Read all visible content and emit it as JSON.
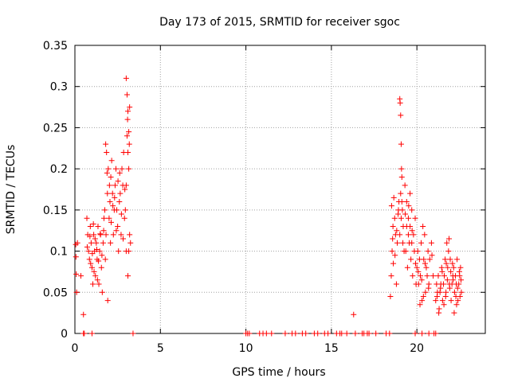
{
  "chart_data": {
    "type": "scatter",
    "title": "Day 173 of 2015, SRMTID for receiver sgoc",
    "xlabel": "GPS time / hours",
    "ylabel": "SRMTID / TECUs",
    "xlim": [
      0,
      24
    ],
    "ylim": [
      0,
      0.35
    ],
    "xticks": [
      0,
      5,
      10,
      15,
      20
    ],
    "xtick_labels": [
      "0",
      "5",
      "10",
      "15",
      "20"
    ],
    "yticks": [
      0,
      0.05,
      0.1,
      0.15,
      0.2,
      0.25,
      0.3,
      0.35
    ],
    "ytick_labels": [
      "0",
      "0.05",
      "0.1",
      "0.15",
      "0.2",
      "0.25",
      "0.3",
      "0.35"
    ],
    "grid": true,
    "marker": "plus",
    "color": "#ff0000",
    "series": [
      {
        "name": "SRMTID",
        "points": [
          [
            0.05,
            0.108
          ],
          [
            0.06,
            0.093
          ],
          [
            0.08,
            0.072
          ],
          [
            0.1,
            0.05
          ],
          [
            0.5,
            0.023
          ],
          [
            0.15,
            0.11
          ],
          [
            0.35,
            0.07
          ],
          [
            0.7,
            0.14
          ],
          [
            0.75,
            0.12
          ],
          [
            0.8,
            0.1
          ],
          [
            0.85,
            0.09
          ],
          [
            0.9,
            0.13
          ],
          [
            0.95,
            0.11
          ],
          [
            1.0,
            0.08
          ],
          [
            1.05,
            0.06
          ],
          [
            1.1,
            0.12
          ],
          [
            1.15,
            0.1
          ],
          [
            1.2,
            0.07
          ],
          [
            1.25,
            0.11
          ],
          [
            1.3,
            0.09
          ],
          [
            1.35,
            0.13
          ],
          [
            1.4,
            0.06
          ],
          [
            1.45,
            0.1
          ],
          [
            1.5,
            0.12
          ],
          [
            1.55,
            0.08
          ],
          [
            1.6,
            0.05
          ],
          [
            1.65,
            0.11
          ],
          [
            1.7,
            0.14
          ],
          [
            0.72,
            0.105
          ],
          [
            0.88,
            0.118
          ],
          [
            0.92,
            0.085
          ],
          [
            1.02,
            0.097
          ],
          [
            1.08,
            0.133
          ],
          [
            1.18,
            0.115
          ],
          [
            1.28,
            0.102
          ],
          [
            1.38,
            0.088
          ],
          [
            1.48,
            0.121
          ],
          [
            1.58,
            0.095
          ],
          [
            1.68,
            0.125
          ],
          [
            1.12,
            0.075
          ],
          [
            1.32,
            0.065
          ],
          [
            1.8,
            0.23
          ],
          [
            1.85,
            0.22
          ],
          [
            1.9,
            0.17
          ],
          [
            1.75,
            0.15
          ],
          [
            1.95,
            0.2
          ],
          [
            2.0,
            0.14
          ],
          [
            2.05,
            0.16
          ],
          [
            1.82,
            0.12
          ],
          [
            1.92,
            0.04
          ],
          [
            1.78,
            0.09
          ],
          [
            2.02,
            0.18
          ],
          [
            1.88,
            0.195
          ],
          [
            2.08,
            0.11
          ],
          [
            2.1,
            0.19
          ],
          [
            2.2,
            0.17
          ],
          [
            2.3,
            0.15
          ],
          [
            2.4,
            0.2
          ],
          [
            2.5,
            0.13
          ],
          [
            2.6,
            0.16
          ],
          [
            2.7,
            0.12
          ],
          [
            2.8,
            0.18
          ],
          [
            2.9,
            0.14
          ],
          [
            3.0,
            0.1
          ],
          [
            2.15,
            0.21
          ],
          [
            2.25,
            0.12
          ],
          [
            2.35,
            0.18
          ],
          [
            2.45,
            0.15
          ],
          [
            2.55,
            0.1
          ],
          [
            2.65,
            0.17
          ],
          [
            2.75,
            0.2
          ],
          [
            2.85,
            0.22
          ],
          [
            2.95,
            0.15
          ],
          [
            2.12,
            0.135
          ],
          [
            2.32,
            0.165
          ],
          [
            2.52,
            0.185
          ],
          [
            2.72,
            0.145
          ],
          [
            2.92,
            0.175
          ],
          [
            2.22,
            0.155
          ],
          [
            2.42,
            0.125
          ],
          [
            2.62,
            0.195
          ],
          [
            2.82,
            0.115
          ],
          [
            3.0,
            0.31
          ],
          [
            3.05,
            0.29
          ],
          [
            3.1,
            0.27
          ],
          [
            3.15,
            0.245
          ],
          [
            3.2,
            0.275
          ],
          [
            3.1,
            0.22
          ],
          [
            3.15,
            0.2
          ],
          [
            3.05,
            0.24
          ],
          [
            3.0,
            0.18
          ],
          [
            3.2,
            0.12
          ],
          [
            3.15,
            0.1
          ],
          [
            3.1,
            0.07
          ],
          [
            3.25,
            0.11
          ],
          [
            3.08,
            0.26
          ],
          [
            3.18,
            0.23
          ],
          [
            18.45,
            0.045
          ],
          [
            18.5,
            0.07
          ],
          [
            18.55,
            0.1
          ],
          [
            18.6,
            0.13
          ],
          [
            18.65,
            0.165
          ],
          [
            18.7,
            0.14
          ],
          [
            18.75,
            0.12
          ],
          [
            18.8,
            0.06
          ],
          [
            18.85,
            0.11
          ],
          [
            18.9,
            0.145
          ],
          [
            18.95,
            0.16
          ],
          [
            18.52,
            0.155
          ],
          [
            18.62,
            0.085
          ],
          [
            18.72,
            0.095
          ],
          [
            18.82,
            0.125
          ],
          [
            18.92,
            0.15
          ],
          [
            18.58,
            0.115
          ],
          [
            19.0,
            0.285
          ],
          [
            19.02,
            0.28
          ],
          [
            19.05,
            0.265
          ],
          [
            19.08,
            0.23
          ],
          [
            19.1,
            0.2
          ],
          [
            19.12,
            0.19
          ],
          [
            19.05,
            0.17
          ],
          [
            19.15,
            0.15
          ],
          [
            19.2,
            0.13
          ],
          [
            19.0,
            0.12
          ],
          [
            19.25,
            0.1
          ],
          [
            19.08,
            0.14
          ],
          [
            19.18,
            0.11
          ],
          [
            19.12,
            0.16
          ],
          [
            19.3,
            0.18
          ],
          [
            19.4,
            0.16
          ],
          [
            19.5,
            0.14
          ],
          [
            19.6,
            0.13
          ],
          [
            19.7,
            0.15
          ],
          [
            19.8,
            0.12
          ],
          [
            19.35,
            0.1
          ],
          [
            19.45,
            0.08
          ],
          [
            19.55,
            0.11
          ],
          [
            19.65,
            0.09
          ],
          [
            19.75,
            0.07
          ],
          [
            19.85,
            0.1
          ],
          [
            19.95,
            0.06
          ],
          [
            19.4,
            0.13
          ],
          [
            19.6,
            0.17
          ],
          [
            19.5,
            0.12
          ],
          [
            19.7,
            0.11
          ],
          [
            19.9,
            0.14
          ],
          [
            19.32,
            0.145
          ],
          [
            19.52,
            0.155
          ],
          [
            19.72,
            0.125
          ],
          [
            19.92,
            0.085
          ],
          [
            20.0,
            0.08
          ],
          [
            20.1,
            0.06
          ],
          [
            20.2,
            0.07
          ],
          [
            20.3,
            0.04
          ],
          [
            20.4,
            0.09
          ],
          [
            20.5,
            0.05
          ],
          [
            20.6,
            0.07
          ],
          [
            20.7,
            0.06
          ],
          [
            20.05,
            0.1
          ],
          [
            20.15,
            0.09
          ],
          [
            20.25,
            0.11
          ],
          [
            20.35,
            0.13
          ],
          [
            20.45,
            0.12
          ],
          [
            20.55,
            0.08
          ],
          [
            20.65,
            0.1
          ],
          [
            20.75,
            0.09
          ],
          [
            20.85,
            0.11
          ],
          [
            20.95,
            0.07
          ],
          [
            20.08,
            0.075
          ],
          [
            20.28,
            0.065
          ],
          [
            20.48,
            0.085
          ],
          [
            20.68,
            0.055
          ],
          [
            20.88,
            0.095
          ],
          [
            20.18,
            0.035
          ],
          [
            20.38,
            0.045
          ],
          [
            21.1,
            0.04
          ],
          [
            21.2,
            0.05
          ],
          [
            21.3,
            0.03
          ],
          [
            21.4,
            0.06
          ],
          [
            21.5,
            0.04
          ],
          [
            21.6,
            0.07
          ],
          [
            21.7,
            0.05
          ],
          [
            21.8,
            0.08
          ],
          [
            21.9,
            0.06
          ],
          [
            22.0,
            0.04
          ],
          [
            22.1,
            0.07
          ],
          [
            22.2,
            0.05
          ],
          [
            22.3,
            0.06
          ],
          [
            22.4,
            0.04
          ],
          [
            22.5,
            0.07
          ],
          [
            22.6,
            0.05
          ],
          [
            21.15,
            0.06
          ],
          [
            21.25,
            0.07
          ],
          [
            21.35,
            0.05
          ],
          [
            21.45,
            0.08
          ],
          [
            21.55,
            0.06
          ],
          [
            21.65,
            0.09
          ],
          [
            21.75,
            0.11
          ],
          [
            21.85,
            0.1
          ],
          [
            21.95,
            0.09
          ],
          [
            22.05,
            0.06
          ],
          [
            22.15,
            0.08
          ],
          [
            22.25,
            0.07
          ],
          [
            22.35,
            0.09
          ],
          [
            22.45,
            0.06
          ],
          [
            22.55,
            0.08
          ],
          [
            21.18,
            0.045
          ],
          [
            21.38,
            0.055
          ],
          [
            21.58,
            0.035
          ],
          [
            21.78,
            0.065
          ],
          [
            21.98,
            0.075
          ],
          [
            22.18,
            0.025
          ],
          [
            22.38,
            0.055
          ],
          [
            22.58,
            0.065
          ],
          [
            21.28,
            0.025
          ],
          [
            21.48,
            0.075
          ],
          [
            21.68,
            0.045
          ],
          [
            21.88,
            0.115
          ],
          [
            22.08,
            0.085
          ],
          [
            22.28,
            0.045
          ],
          [
            22.48,
            0.075
          ],
          [
            21.72,
            0.085
          ],
          [
            21.92,
            0.055
          ],
          [
            22.12,
            0.065
          ],
          [
            22.32,
            0.035
          ],
          [
            22.52,
            0.045
          ],
          [
            0.5,
            0
          ],
          [
            0.55,
            0
          ],
          [
            1.0,
            0
          ],
          [
            3.4,
            0
          ],
          [
            10.0,
            0
          ],
          [
            10.1,
            0
          ],
          [
            10.2,
            0
          ],
          [
            10.8,
            0
          ],
          [
            11.0,
            0
          ],
          [
            11.2,
            0
          ],
          [
            11.5,
            0
          ],
          [
            12.3,
            0
          ],
          [
            12.7,
            0
          ],
          [
            12.9,
            0
          ],
          [
            13.3,
            0
          ],
          [
            13.5,
            0
          ],
          [
            14.0,
            0
          ],
          [
            14.2,
            0
          ],
          [
            14.6,
            0
          ],
          [
            14.8,
            0
          ],
          [
            15.3,
            0
          ],
          [
            15.5,
            0
          ],
          [
            15.6,
            0
          ],
          [
            15.9,
            0
          ],
          [
            16.4,
            0
          ],
          [
            16.8,
            0
          ],
          [
            16.9,
            0
          ],
          [
            17.1,
            0
          ],
          [
            17.2,
            0
          ],
          [
            17.6,
            0
          ],
          [
            18.2,
            0
          ],
          [
            18.4,
            0
          ],
          [
            19.9,
            0
          ],
          [
            20.3,
            0
          ],
          [
            20.7,
            0
          ],
          [
            21.0,
            0
          ],
          [
            21.1,
            0
          ],
          [
            16.3,
            0.023
          ]
        ]
      }
    ]
  }
}
